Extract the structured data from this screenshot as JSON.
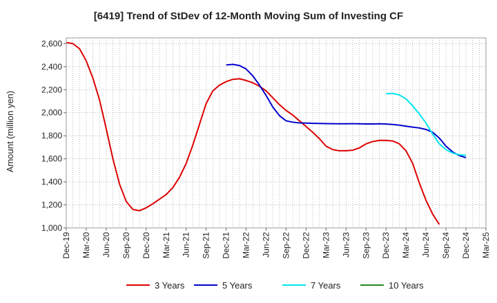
{
  "chart_data": {
    "type": "line",
    "title": "[6419]  Trend of StDev of 12-Month Moving Sum of Investing CF",
    "xlabel": "",
    "ylabel": "Amount (million yen)",
    "ylim": [
      1000,
      2650
    ],
    "yticks": [
      1000,
      1200,
      1400,
      1600,
      1800,
      2000,
      2200,
      2400,
      2600
    ],
    "ytick_labels": [
      "1,000",
      "1,200",
      "1,400",
      "1,600",
      "1,800",
      "2,000",
      "2,200",
      "2,400",
      "2,600"
    ],
    "x_start": "Dec-19",
    "x_end": "Mar-25",
    "x_tick_labels": [
      "Dec-19",
      "Mar-20",
      "Jun-20",
      "Sep-20",
      "Dec-20",
      "Mar-21",
      "Jun-21",
      "Sep-21",
      "Dec-21",
      "Mar-22",
      "Jun-22",
      "Sep-22",
      "Dec-22",
      "Mar-23",
      "Jun-23",
      "Sep-23",
      "Dec-23",
      "Mar-24",
      "Jun-24",
      "Sep-24",
      "Dec-24",
      "Mar-25"
    ],
    "grid": true,
    "legend_position": "bottom",
    "series": [
      {
        "name": "3 Years",
        "color": "#dd0000",
        "start_month_index": 0,
        "values": [
          2610,
          2600,
          2555,
          2450,
          2300,
          2110,
          1860,
          1600,
          1380,
          1230,
          1160,
          1150,
          1175,
          1210,
          1250,
          1290,
          1350,
          1440,
          1560,
          1720,
          1900,
          2080,
          2190,
          2240,
          2270,
          2290,
          2295,
          2280,
          2260,
          2230,
          2190,
          2130,
          2070,
          2020,
          1980,
          1930,
          1880,
          1830,
          1775,
          1710,
          1680,
          1670,
          1670,
          1675,
          1695,
          1730,
          1750,
          1760,
          1760,
          1755,
          1730,
          1670,
          1560,
          1390,
          1240,
          1120,
          1030
        ]
      },
      {
        "name": "5 Years",
        "color": "#0000cc",
        "start_month_index": 24,
        "values": [
          2415,
          2420,
          2410,
          2380,
          2320,
          2240,
          2150,
          2050,
          1975,
          1930,
          1918,
          1912,
          1910,
          1908,
          1907,
          1906,
          1905,
          1904,
          1904,
          1905,
          1904,
          1903,
          1903,
          1904,
          1902,
          1898,
          1892,
          1883,
          1875,
          1868,
          1855,
          1830,
          1780,
          1710,
          1660,
          1628,
          1610
        ]
      },
      {
        "name": "7 Years",
        "color": "#00e5ee",
        "start_month_index": 48,
        "values": [
          2165,
          2168,
          2155,
          2120,
          2060,
          1990,
          1910,
          1815,
          1730,
          1680,
          1650,
          1635,
          1630
        ]
      },
      {
        "name": "10 Years",
        "color": "#228822",
        "start_month_index": 0,
        "values": []
      }
    ]
  }
}
